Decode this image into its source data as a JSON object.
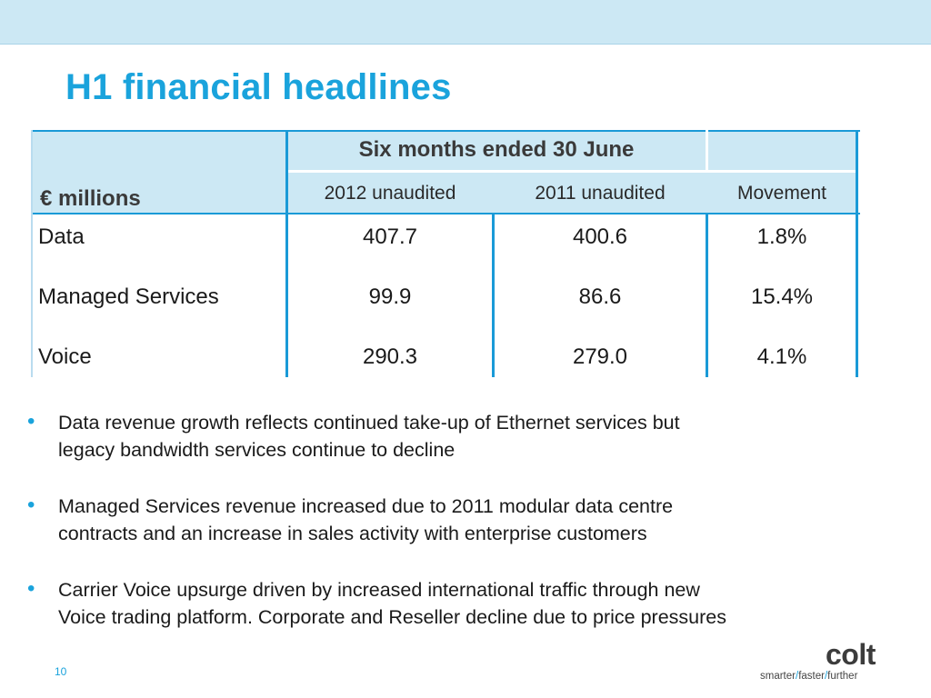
{
  "slide": {
    "title": "H1 financial headlines",
    "page_number": "10"
  },
  "table": {
    "group_header": "Six months ended 30 June",
    "units_label": "€ millions",
    "columns": [
      "2012 unaudited",
      "2011 unaudited",
      "Movement"
    ],
    "rows": [
      {
        "label": "Data",
        "y2012": "407.7",
        "y2011": "400.6",
        "movement": "1.8%"
      },
      {
        "label": "Managed Services",
        "y2012": "99.9",
        "y2011": "86.6",
        "movement": "15.4%"
      },
      {
        "label": "Voice",
        "y2012": "290.3",
        "y2011": "279.0",
        "movement": "4.1%"
      }
    ]
  },
  "bullets": [
    {
      "line1": "Data revenue growth reflects continued take-up of Ethernet services but",
      "line2": "legacy bandwidth services continue to decline"
    },
    {
      "line1": "Managed Services revenue increased due to 2011 modular data centre",
      "line2": "contracts and an increase in sales activity with enterprise customers"
    },
    {
      "line1": "Carrier Voice upsurge driven by increased international traffic through new",
      "line2": "Voice trading platform. Corporate and Reseller decline due to price pressures"
    }
  ],
  "logo": {
    "wordmark": "colt",
    "tag_1": "smarter",
    "tag_2": "faster",
    "tag_3": "further",
    "separator": "/"
  },
  "colors": {
    "accent": "#1aa3dc",
    "header_fill": "#cce8f4",
    "rule": "#1a9ad7"
  }
}
